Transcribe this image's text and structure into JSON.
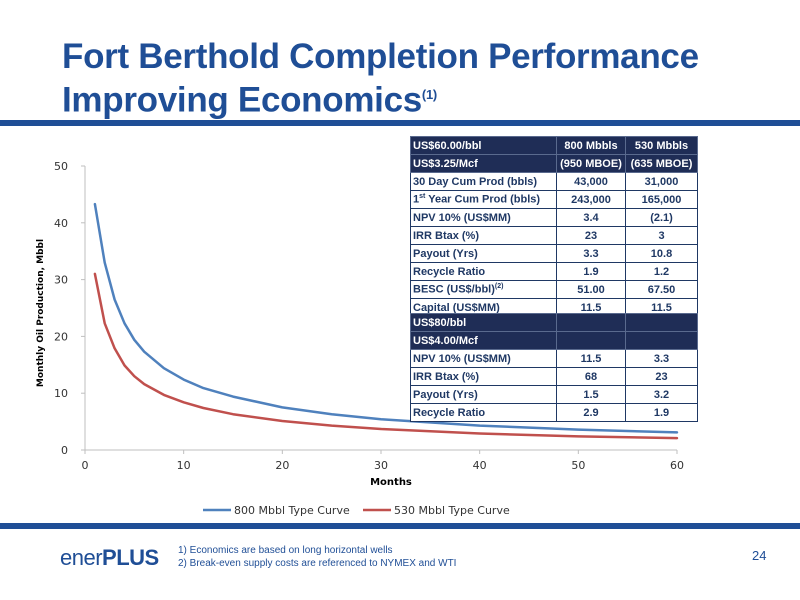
{
  "title": {
    "line1": "Fort Berthold Completion Performance",
    "line2": "Improving Economics",
    "footnote_ref": "(1)"
  },
  "table1": {
    "header": [
      [
        "US$60.00/bbl",
        "800 Mbbls",
        "530 Mbbls"
      ],
      [
        "US$3.25/Mcf",
        "(950 MBOE)",
        "(635 MBOE)"
      ]
    ],
    "rows": [
      [
        "30 Day Cum Prod (bbls)",
        "43,000",
        "31,000"
      ],
      [
        "1st Year Cum Prod (bbls)",
        "243,000",
        "165,000"
      ],
      [
        "NPV 10%  (US$MM)",
        "3.4",
        "(2.1)"
      ],
      [
        "IRR  Btax  (%)",
        "23",
        "3"
      ],
      [
        "Payout (Yrs)",
        "3.3",
        "10.8"
      ],
      [
        "Recycle Ratio",
        "1.9",
        "1.2"
      ],
      [
        "BESC (US$/bbl)(2)",
        "51.00",
        "67.50"
      ],
      [
        "Capital (US$MM)",
        "11.5",
        "11.5"
      ]
    ]
  },
  "table2": {
    "header": [
      [
        "US$80/bbl",
        "",
        ""
      ],
      [
        "US$4.00/Mcf",
        "",
        ""
      ]
    ],
    "rows": [
      [
        "NPV 10%  (US$MM)",
        "11.5",
        "3.3"
      ],
      [
        "IRR  Btax  (%)",
        "68",
        "23"
      ],
      [
        "Payout (Yrs)",
        "1.5",
        "3.2"
      ],
      [
        "Recycle Ratio",
        "2.9",
        "1.9"
      ]
    ]
  },
  "chart_data": {
    "type": "line",
    "title": "",
    "xlabel": "Months",
    "ylabel": "Monthly Oil Production, Mbbl",
    "xlim": [
      0,
      60
    ],
    "ylim": [
      0,
      50
    ],
    "xticks": [
      "0",
      "10",
      "20",
      "30",
      "40",
      "50",
      "60"
    ],
    "yticks": [
      "0",
      "10",
      "20",
      "30",
      "40",
      "50"
    ],
    "grid": false,
    "legend": "bottom",
    "x": [
      1,
      2,
      3,
      4,
      5,
      6,
      8,
      10,
      12,
      15,
      20,
      25,
      30,
      40,
      50,
      60
    ],
    "series": [
      {
        "name": "800 Mbbl Type Curve",
        "color": "#4f81bd",
        "values": [
          43.3,
          33.0,
          26.5,
          22.3,
          19.4,
          17.3,
          14.4,
          12.4,
          10.9,
          9.4,
          7.5,
          6.3,
          5.4,
          4.3,
          3.6,
          3.1
        ]
      },
      {
        "name": "530 Mbbl Type Curve",
        "color": "#c0504d",
        "values": [
          31.0,
          22.3,
          17.9,
          14.9,
          13.0,
          11.6,
          9.7,
          8.4,
          7.4,
          6.3,
          5.1,
          4.3,
          3.7,
          2.9,
          2.4,
          2.1
        ]
      }
    ]
  },
  "footer": {
    "logo_prefix": "ener",
    "logo_suffix": "PLUS",
    "notes": [
      "1)   Economics are based on long horizontal wells",
      "2)   Break-even supply costs are referenced to NYMEX and WTI"
    ],
    "page_number": "24"
  }
}
